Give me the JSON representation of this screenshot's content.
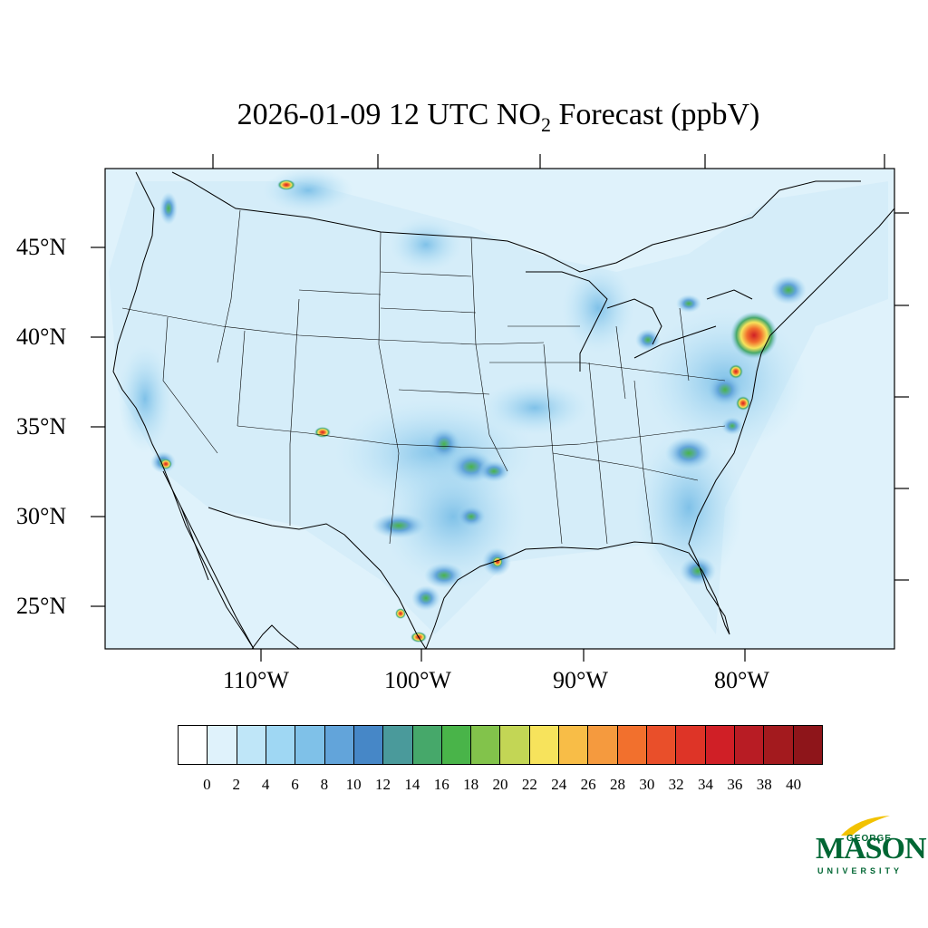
{
  "title": {
    "main": "2026-01-09 12 UTC NO",
    "sub": "2",
    "rest": " Forecast (ppbV)"
  },
  "lat_labels": [
    "45°N",
    "40°N",
    "35°N",
    "30°N",
    "25°N"
  ],
  "lon_labels": [
    "110°W",
    "100°W",
    "90°W",
    "80°W"
  ],
  "colorbar": {
    "colors": [
      "#ffffff",
      "#dff2fb",
      "#bfe6f8",
      "#9fd7f3",
      "#7fc1e8",
      "#62a4da",
      "#4687c7",
      "#4a9a9b",
      "#46a86a",
      "#49b449",
      "#82c34b",
      "#c3d655",
      "#f7e35c",
      "#f8bd47",
      "#f59a3e",
      "#f2702d",
      "#e94f2a",
      "#de3427",
      "#d01f26",
      "#b81c24",
      "#a31a1e",
      "#8e151a"
    ],
    "labels": [
      "0",
      "2",
      "4",
      "6",
      "8",
      "10",
      "12",
      "14",
      "16",
      "18",
      "20",
      "22",
      "24",
      "26",
      "28",
      "30",
      "32",
      "34",
      "36",
      "38",
      "40"
    ]
  },
  "logo": {
    "top": "GEORGE",
    "main": "MASON",
    "bottom": "UNIVERSITY",
    "color": "#006633",
    "accent": "#f2c200"
  },
  "map": {
    "background": "#dff2fb",
    "land_line": "#000000"
  }
}
